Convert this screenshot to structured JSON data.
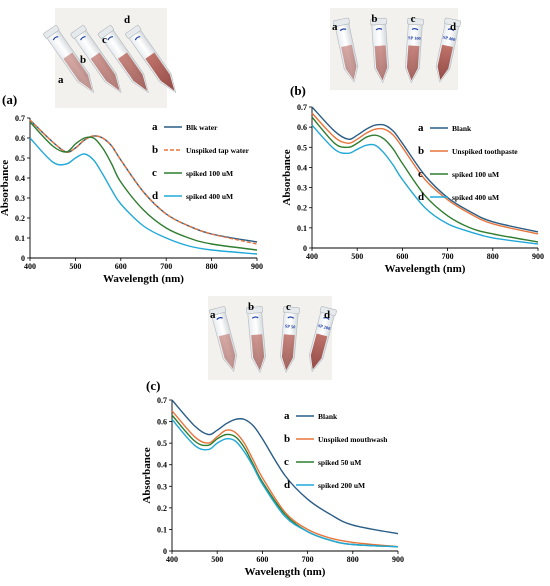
{
  "figure": {
    "panels": [
      {
        "id": "a",
        "label": "(a)",
        "tube_labels": [
          "a",
          "b",
          "c",
          "d"
        ],
        "tube_caps": [
          "",
          "",
          "",
          ""
        ]
      },
      {
        "id": "b",
        "label": "(b)",
        "tube_labels": [
          "a",
          "b",
          "c",
          "d"
        ],
        "tube_caps": [
          "",
          "",
          "SP 100",
          "SP 400"
        ]
      },
      {
        "id": "c",
        "label": "(c)",
        "tube_labels": [
          "a",
          "b",
          "c",
          "d"
        ],
        "tube_caps": [
          "",
          "",
          "SP 50",
          "SP 200"
        ]
      }
    ]
  },
  "chart_data": [
    {
      "type": "line",
      "panel": "(a)",
      "xlabel": "Wavelength (nm)",
      "ylabel": "Absorbance",
      "xlim": [
        400,
        900
      ],
      "ylim": [
        0,
        0.7
      ],
      "xticks": [
        "400",
        "500",
        "600",
        "700",
        "800",
        "900"
      ],
      "yticks": [
        "0",
        "0.1",
        "0.2",
        "0.3",
        "0.4",
        "0.5",
        "0.6",
        "0.7"
      ],
      "grid": false,
      "legend_position": "top-right",
      "x": [
        400,
        450,
        480,
        500,
        520,
        540,
        560,
        580,
        600,
        650,
        700,
        750,
        800,
        900
      ],
      "series": [
        {
          "letter": "a",
          "name": "Blk water",
          "color": "#2a5d86",
          "dashed": false,
          "values": [
            0.69,
            0.58,
            0.53,
            0.55,
            0.59,
            0.61,
            0.6,
            0.56,
            0.49,
            0.33,
            0.22,
            0.16,
            0.12,
            0.08
          ]
        },
        {
          "letter": "b",
          "name": "Unspiked tap water",
          "color": "#e8743b",
          "dashed": true,
          "values": [
            0.69,
            0.58,
            0.53,
            0.55,
            0.59,
            0.61,
            0.6,
            0.56,
            0.49,
            0.33,
            0.22,
            0.16,
            0.12,
            0.07
          ]
        },
        {
          "letter": "c",
          "name": "spiked 100 uM",
          "color": "#2f7d2f",
          "dashed": false,
          "values": [
            0.68,
            0.56,
            0.53,
            0.57,
            0.6,
            0.6,
            0.55,
            0.47,
            0.38,
            0.24,
            0.15,
            0.1,
            0.07,
            0.04
          ]
        },
        {
          "letter": "d",
          "name": "spiked 400 uM",
          "color": "#21a8d8",
          "dashed": false,
          "values": [
            0.6,
            0.48,
            0.47,
            0.5,
            0.52,
            0.49,
            0.42,
            0.34,
            0.27,
            0.16,
            0.1,
            0.06,
            0.04,
            0.02
          ]
        }
      ]
    },
    {
      "type": "line",
      "panel": "(b)",
      "xlabel": "Wavelength (nm)",
      "ylabel": "Absorbance",
      "xlim": [
        400,
        900
      ],
      "ylim": [
        0,
        0.7
      ],
      "xticks": [
        "400",
        "500",
        "600",
        "700",
        "800",
        "900"
      ],
      "yticks": [
        "0",
        "0.1",
        "0.2",
        "0.3",
        "0.4",
        "0.5",
        "0.6",
        "0.7"
      ],
      "grid": false,
      "legend_position": "top-right",
      "x": [
        400,
        450,
        480,
        500,
        520,
        540,
        560,
        580,
        600,
        650,
        700,
        750,
        800,
        900
      ],
      "series": [
        {
          "letter": "a",
          "name": "Blank",
          "color": "#2a5d86",
          "dashed": false,
          "values": [
            0.7,
            0.58,
            0.54,
            0.56,
            0.59,
            0.61,
            0.61,
            0.58,
            0.52,
            0.36,
            0.25,
            0.18,
            0.13,
            0.08
          ]
        },
        {
          "letter": "b",
          "name": "Unspiked toothpaste",
          "color": "#e8743b",
          "dashed": false,
          "values": [
            0.67,
            0.55,
            0.52,
            0.54,
            0.57,
            0.59,
            0.59,
            0.56,
            0.5,
            0.34,
            0.24,
            0.17,
            0.12,
            0.07
          ]
        },
        {
          "letter": "c",
          "name": "spiked 100 uM",
          "color": "#2f7d2f",
          "dashed": false,
          "values": [
            0.65,
            0.52,
            0.5,
            0.52,
            0.55,
            0.56,
            0.54,
            0.49,
            0.42,
            0.26,
            0.16,
            0.1,
            0.07,
            0.03
          ]
        },
        {
          "letter": "d",
          "name": "spiked 400 uM",
          "color": "#21a8d8",
          "dashed": false,
          "values": [
            0.61,
            0.49,
            0.47,
            0.49,
            0.51,
            0.51,
            0.47,
            0.41,
            0.34,
            0.2,
            0.12,
            0.08,
            0.05,
            0.02
          ]
        }
      ]
    },
    {
      "type": "line",
      "panel": "(c)",
      "xlabel": "Wavelength (nm)",
      "ylabel": "Absorbance",
      "xlim": [
        400,
        900
      ],
      "ylim": [
        0,
        0.7
      ],
      "xticks": [
        "400",
        "500",
        "600",
        "700",
        "800",
        "900"
      ],
      "yticks": [
        "0",
        "0.1",
        "0.2",
        "0.3",
        "0.4",
        "0.5",
        "0.6",
        "0.7"
      ],
      "grid": false,
      "legend_position": "top-right",
      "x": [
        400,
        450,
        480,
        500,
        520,
        540,
        560,
        580,
        600,
        650,
        700,
        750,
        800,
        900
      ],
      "series": [
        {
          "letter": "a",
          "name": "Blank",
          "color": "#2a5d86",
          "dashed": false,
          "values": [
            0.7,
            0.58,
            0.54,
            0.56,
            0.59,
            0.61,
            0.61,
            0.58,
            0.52,
            0.35,
            0.24,
            0.17,
            0.12,
            0.08
          ]
        },
        {
          "letter": "b",
          "name": "Unspiked mouthwash",
          "color": "#e8743b",
          "dashed": false,
          "values": [
            0.65,
            0.53,
            0.5,
            0.53,
            0.56,
            0.55,
            0.5,
            0.42,
            0.34,
            0.18,
            0.1,
            0.06,
            0.04,
            0.02
          ]
        },
        {
          "letter": "c",
          "name": "spiked 50 uM",
          "color": "#2f7d2f",
          "dashed": false,
          "values": [
            0.63,
            0.51,
            0.49,
            0.52,
            0.54,
            0.53,
            0.48,
            0.4,
            0.32,
            0.17,
            0.09,
            0.05,
            0.03,
            0.02
          ]
        },
        {
          "letter": "d",
          "name": "spiked 200 uM",
          "color": "#21a8d8",
          "dashed": false,
          "values": [
            0.61,
            0.49,
            0.47,
            0.5,
            0.52,
            0.51,
            0.46,
            0.39,
            0.31,
            0.16,
            0.09,
            0.05,
            0.03,
            0.02
          ]
        }
      ]
    }
  ]
}
